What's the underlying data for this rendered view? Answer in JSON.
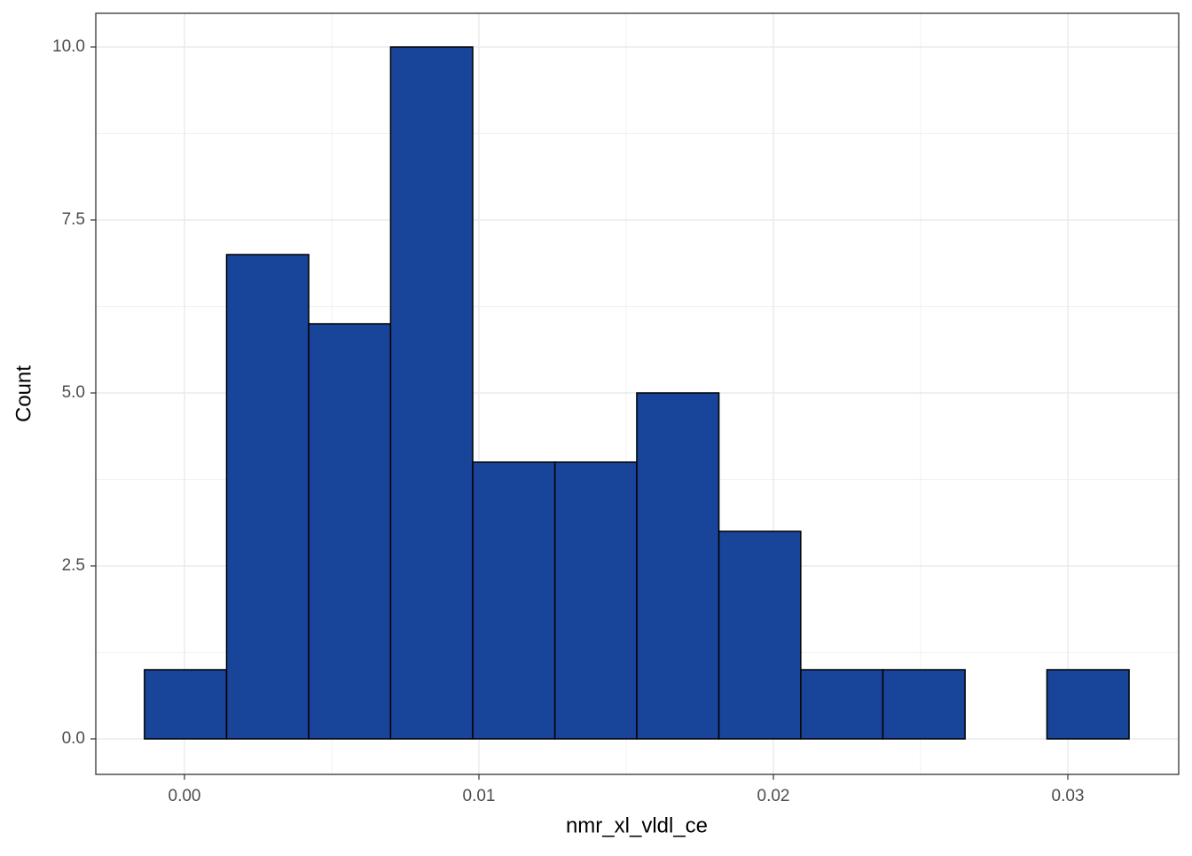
{
  "chart_data": {
    "type": "histogram",
    "x_label": "nmr_xl_vldl_ce",
    "y_label": "Count",
    "bins": [
      -0.00136,
      0.00143,
      0.00422,
      0.007,
      0.00979,
      0.01258,
      0.01536,
      0.01815,
      0.02093,
      0.02372,
      0.02651,
      0.02929,
      0.03208
    ],
    "values": [
      1,
      7,
      6,
      10,
      4,
      4,
      5,
      3,
      1,
      1,
      0,
      1
    ],
    "color": "#18449a",
    "edge_color": "#000000",
    "xlim": [
      -0.003012,
      0.033765
    ],
    "ylim": [
      -0.513,
      10.487
    ],
    "xticks": [
      {
        "value": 0,
        "label": "0.00"
      },
      0.01,
      0.02,
      0.03
    ],
    "yticks": [
      {
        "value": 0,
        "label": "0.0"
      },
      2.5,
      {
        "value": 5,
        "label": "5.0"
      },
      {
        "value": 7.5,
        "label": "7.5"
      },
      {
        "value": 10,
        "label": "10.0"
      }
    ],
    "grid": true
  }
}
